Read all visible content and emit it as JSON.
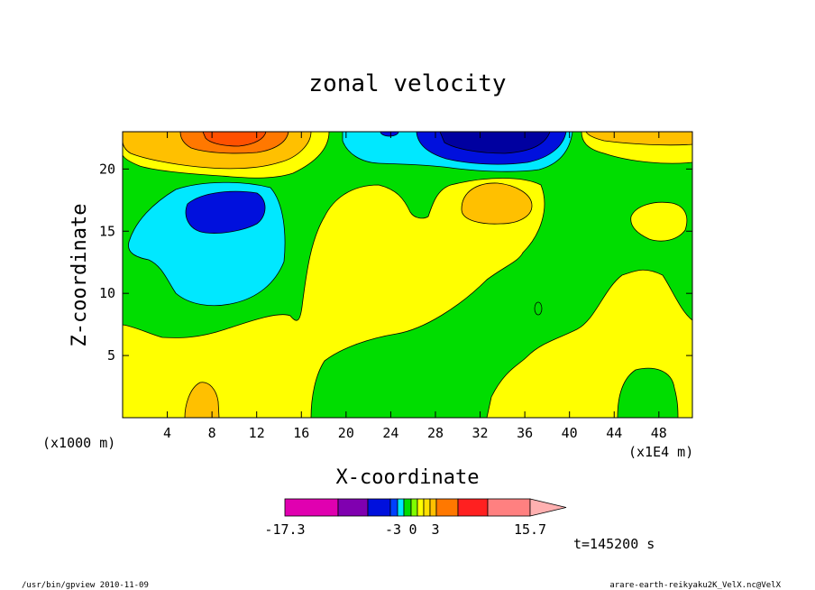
{
  "footer": {
    "left": "/usr/bin/gpview  2010-11-09",
    "right": "arare-earth-reikyaku2K_VelX.nc@VelX"
  },
  "time_label": "t=145200 s",
  "colors": {
    "bg": "#ffffff",
    "field_yellow": "#ffff00",
    "field_green": "#00dd00",
    "light_orange": "#ffc000",
    "orange": "#ff7800",
    "cyan": "#00e8ff",
    "deep_blue": "#0010dd",
    "navy": "#0000a0",
    "magenta": "#e000b0",
    "purple": "#8000b0",
    "pink": "#ffb0b0"
  },
  "chart_data": {
    "type": "heatmap",
    "title": "zonal velocity",
    "xlabel": "X-coordinate",
    "ylabel": "Z-coordinate",
    "x_unit_left": "(x1000 m)",
    "x_unit_right": "(x1E4 m)",
    "xlim": [
      0,
      51
    ],
    "ylim": [
      0,
      23
    ],
    "x_ticks": [
      4,
      8,
      12,
      16,
      20,
      24,
      28,
      32,
      36,
      40,
      44,
      48
    ],
    "y_ticks": [
      5,
      10,
      15,
      20
    ],
    "grid": false,
    "colorbar": {
      "min_label": "-17.3",
      "max_label": "15.7",
      "tick_labels": [
        "-3",
        "0",
        "3"
      ],
      "colors": [
        "#e000b0",
        "#8000b0",
        "#0010dd",
        "#0040ff",
        "#00e8ff",
        "#00dd00",
        "#80ff00",
        "#ffff00",
        "#ffe000",
        "#ffc000",
        "#ff7800",
        "#ff2020",
        "#ff8080",
        "#ffb0b0"
      ]
    }
  }
}
